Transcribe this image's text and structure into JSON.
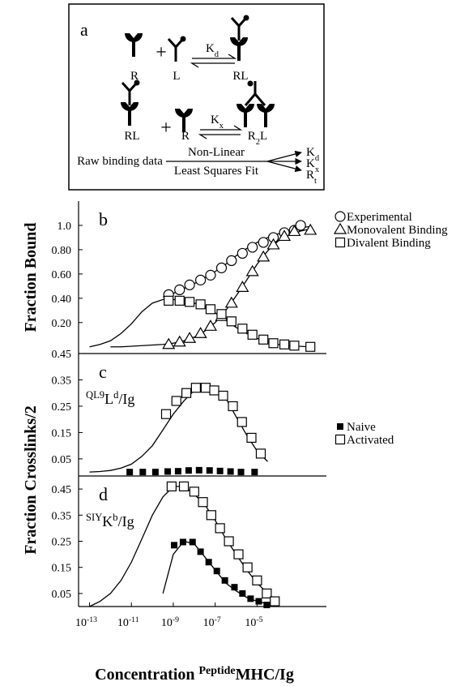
{
  "diagram": {
    "label": "a",
    "reaction1": {
      "receptor": "R",
      "operator": "+",
      "ligand": "L",
      "constant": [
        {
          "text": "K"
        },
        {
          "text": "d",
          "sub": true
        }
      ],
      "product": "RL"
    },
    "reaction2": {
      "complex": "RL",
      "operator": "+",
      "receptor": "R",
      "constant": [
        {
          "text": "K"
        },
        {
          "text": "x",
          "sub": true
        }
      ],
      "product": [
        {
          "text": "R"
        },
        {
          "text": "2",
          "sub": true
        },
        {
          "text": "L"
        }
      ]
    },
    "fit": {
      "input": "Raw binding data",
      "method_top": "Non-Linear",
      "method_bottom": "Least Squares Fit",
      "outputs": [
        [
          {
            "text": "K"
          },
          {
            "text": "d",
            "sub": true
          }
        ],
        [
          {
            "text": "K"
          },
          {
            "text": "x",
            "sub": true
          }
        ],
        [
          {
            "text": "R"
          },
          {
            "text": "t",
            "sub": true
          }
        ]
      ]
    }
  },
  "chart_data": [
    {
      "type": "scatter",
      "panel_label": "b",
      "ylabel": "Fraction Bound",
      "xscale": "log",
      "xlim": [
        3e-14,
        0.01
      ],
      "ylim": [
        -0.055,
        1.2
      ],
      "yticks": [
        {
          "value": 0.2,
          "label": "0.20"
        },
        {
          "value": 0.4,
          "label": "0.40"
        },
        {
          "value": 0.6,
          "label": "0.60"
        },
        {
          "value": 0.8,
          "label": "0.80"
        },
        {
          "value": 1.0,
          "label": "1.0"
        }
      ],
      "legend": "right",
      "series": [
        {
          "name": "Experimental",
          "marker": "circle",
          "color": "#000000",
          "x": [
            6e-10,
            2e-09,
            6e-09,
            2e-08,
            6e-08,
            2e-07,
            6e-07,
            2e-06,
            6e-06,
            2e-05,
            6e-05,
            0.0002,
            0.0006,
            0.0012
          ],
          "values": [
            0.43,
            0.47,
            0.51,
            0.55,
            0.59,
            0.65,
            0.71,
            0.77,
            0.82,
            0.86,
            0.9,
            0.94,
            0.96,
            1.0
          ]
        },
        {
          "name": "Monovalent Binding",
          "marker": "triangle",
          "color": "#000000",
          "x": [
            6e-10,
            2e-09,
            6e-09,
            2e-08,
            6e-08,
            2e-07,
            6e-07,
            2e-06,
            6e-06,
            2e-05,
            6e-05,
            0.0002,
            0.0006,
            0.0035
          ],
          "values": [
            0.02,
            0.04,
            0.07,
            0.11,
            0.17,
            0.25,
            0.36,
            0.49,
            0.62,
            0.74,
            0.84,
            0.91,
            0.95,
            0.96
          ]
        },
        {
          "name": "Divalent Binding",
          "marker": "square",
          "color": "#000000",
          "x": [
            6e-10,
            2e-09,
            6e-09,
            2e-08,
            6e-08,
            2e-07,
            6e-07,
            2e-06,
            6e-06,
            2e-05,
            6e-05,
            0.0002,
            0.0006,
            0.0035
          ],
          "values": [
            0.38,
            0.38,
            0.37,
            0.35,
            0.31,
            0.27,
            0.21,
            0.15,
            0.1,
            0.06,
            0.03,
            0.02,
            0.01,
            0.0
          ]
        }
      ],
      "fits": [
        {
          "color": "#000000",
          "x": [
            1e-13,
            3.2e-13,
            1e-12,
            3.2e-12,
            1e-11,
            3.2e-11,
            1e-10,
            3.2e-10,
            1e-09,
            3.2e-09,
            1e-08,
            3.2e-08,
            1e-07,
            3.2e-07,
            1e-06,
            3.2e-06,
            1e-05,
            3.2e-05,
            0.0001,
            0.00032,
            0.001,
            0.0032
          ],
          "values": [
            0.0,
            0.02,
            0.05,
            0.11,
            0.19,
            0.29,
            0.36,
            0.39,
            0.39,
            0.38,
            0.36,
            0.33,
            0.28,
            0.22,
            0.16,
            0.11,
            0.07,
            0.04,
            0.02,
            0.01,
            0.005,
            0.0
          ]
        },
        {
          "color": "#000000",
          "x": [
            1e-12,
            3.2e-12,
            1e-11,
            3.2e-11,
            1e-10,
            3.2e-10,
            1e-09,
            3.2e-09,
            1e-08,
            3.2e-08,
            1e-07,
            3.2e-07,
            1e-06,
            3.2e-06,
            1e-05,
            3.2e-05,
            0.0001,
            0.00032,
            0.001,
            0.0032
          ],
          "values": [
            0.0,
            0.0,
            0.005,
            0.01,
            0.015,
            0.02,
            0.03,
            0.05,
            0.08,
            0.13,
            0.2,
            0.3,
            0.42,
            0.55,
            0.68,
            0.79,
            0.87,
            0.92,
            0.95,
            0.97
          ]
        },
        {
          "color": "#000000",
          "x": [
            3.2e-10,
            1e-09,
            3.2e-09,
            1e-08,
            3.2e-08,
            1e-07,
            3.2e-07,
            1e-06,
            3.2e-06,
            1e-05,
            3.2e-05,
            0.0001,
            0.00032,
            0.001,
            0.0032
          ],
          "values": [
            0.41,
            0.44,
            0.48,
            0.52,
            0.57,
            0.62,
            0.68,
            0.75,
            0.81,
            0.86,
            0.9,
            0.93,
            0.96,
            0.98,
            0.99
          ]
        }
      ]
    },
    {
      "type": "scatter",
      "panel_label": "c",
      "ylabel": "Fraction Crosslinks/2",
      "xscale": "log",
      "annotation": [
        {
          "text": "QL9",
          "sup": true
        },
        {
          "text": "L"
        },
        {
          "text": "d",
          "sup": true
        },
        {
          "text": "/Ig"
        }
      ],
      "xlim": [
        3e-14,
        0.01
      ],
      "ylim": [
        -0.015,
        0.45
      ],
      "yticks": [
        0.05,
        0.15,
        0.25,
        0.35,
        0.45
      ],
      "legend": "right",
      "series": [
        {
          "name": "Naive",
          "marker": "filled-square",
          "color": "#000000",
          "x": [
            8.3e-12,
            3.5e-11,
            1.4e-10,
            5.4e-10,
            1.7e-09,
            5.4e-09,
            1.7e-08,
            5.4e-08,
            1.7e-07,
            5.4e-07,
            1.7e-06,
            7.6e-06
          ],
          "values": [
            0.0,
            0.0,
            0.0,
            0.002,
            0.003,
            0.006,
            0.007,
            0.006,
            0.004,
            0.002,
            0.0,
            0.0
          ]
        },
        {
          "name": "Activated",
          "marker": "square",
          "color": "#000000",
          "x": [
            4.5e-10,
            1.4e-09,
            4.2e-09,
            1.2e-08,
            3.5e-08,
            9e-08,
            2.4e-07,
            7e-07,
            1.9e-06,
            5.4e-06,
            1.5e-05
          ],
          "values": [
            0.22,
            0.27,
            0.3,
            0.32,
            0.32,
            0.31,
            0.29,
            0.25,
            0.19,
            0.13,
            0.07
          ]
        }
      ],
      "fits": [
        {
          "color": "#000000",
          "x": [
            1e-13,
            3.2e-13,
            1e-12,
            3.2e-12,
            1e-11,
            3.2e-11,
            1e-10,
            3.2e-10,
            1e-09,
            3.2e-09,
            1e-08,
            3.2e-08,
            1e-07,
            3.2e-07,
            1e-06,
            3.2e-06,
            1e-05,
            3.2e-05
          ],
          "values": [
            0.0,
            0.002,
            0.006,
            0.015,
            0.03,
            0.06,
            0.1,
            0.16,
            0.22,
            0.27,
            0.31,
            0.33,
            0.32,
            0.28,
            0.21,
            0.14,
            0.08,
            0.04
          ]
        }
      ]
    },
    {
      "type": "scatter",
      "panel_label": "d",
      "xscale": "log",
      "annotation": [
        {
          "text": "SIY",
          "sup": true
        },
        {
          "text": "K"
        },
        {
          "text": "b",
          "sup": true
        },
        {
          "text": "/Ig"
        }
      ],
      "xlabel": [
        {
          "text": "Concentration "
        },
        {
          "text": "Peptide",
          "sup": true
        },
        {
          "text": "MHC/Ig"
        }
      ],
      "xlim": [
        3e-14,
        0.01
      ],
      "ylim": [
        0,
        0.5
      ],
      "xticks": [
        {
          "value": 1e-13,
          "label": "10-13"
        },
        {
          "value": 1e-11,
          "label": "10-11"
        },
        {
          "value": 1e-09,
          "label": "10-9"
        },
        {
          "value": 1e-07,
          "label": "10-7"
        },
        {
          "value": 1e-05,
          "label": "10-5"
        }
      ],
      "yticks": [
        0.05,
        0.15,
        0.25,
        0.35,
        0.45
      ],
      "series": [
        {
          "marker": "filled-square",
          "color": "#000000",
          "x": [
            1.1e-09,
            2.9e-09,
            8.3e-09,
            2e-08,
            4.9e-08,
            1.2e-07,
            2.9e-07,
            8.3e-07,
            2e-06,
            4.9e-06,
            1.2e-05,
            2.9e-05
          ],
          "values": [
            0.235,
            0.247,
            0.247,
            0.21,
            0.17,
            0.136,
            0.1,
            0.074,
            0.05,
            0.03,
            0.02,
            0.006
          ]
        },
        {
          "marker": "square",
          "color": "#000000",
          "x": [
            8.3e-10,
            3.2e-09,
            1e-08,
            2.6e-08,
            6.5e-08,
            1.7e-07,
            4.5e-07,
            1.3e-06,
            3.5e-06,
            1e-05,
            2.9e-05,
            7e-05
          ],
          "values": [
            0.46,
            0.46,
            0.44,
            0.4,
            0.35,
            0.3,
            0.25,
            0.2,
            0.15,
            0.1,
            0.05,
            0.02
          ]
        }
      ],
      "fits": [
        {
          "color": "#000000",
          "x": [
            1e-13,
            3.2e-13,
            1e-12,
            3.2e-12,
            1e-11,
            3.2e-11,
            1e-10,
            3.2e-10,
            1e-09,
            3.2e-09,
            1e-08,
            3.2e-08,
            1e-07,
            3.2e-07,
            1e-06,
            3.2e-06,
            1e-05,
            3.2e-05,
            0.0001
          ],
          "values": [
            0.0,
            0.02,
            0.05,
            0.1,
            0.17,
            0.26,
            0.35,
            0.42,
            0.46,
            0.46,
            0.43,
            0.39,
            0.33,
            0.26,
            0.2,
            0.14,
            0.09,
            0.05,
            0.02
          ]
        },
        {
          "color": "#000000",
          "x": [
            3.2e-10,
            1e-09,
            3.2e-09,
            1e-08,
            3.2e-08,
            1e-07,
            3.2e-07,
            1e-06,
            3.2e-06,
            1e-05,
            3.2e-05,
            0.0001
          ],
          "values": [
            0.05,
            0.2,
            0.25,
            0.24,
            0.19,
            0.14,
            0.09,
            0.06,
            0.035,
            0.02,
            0.01,
            0.0
          ]
        }
      ]
    }
  ]
}
